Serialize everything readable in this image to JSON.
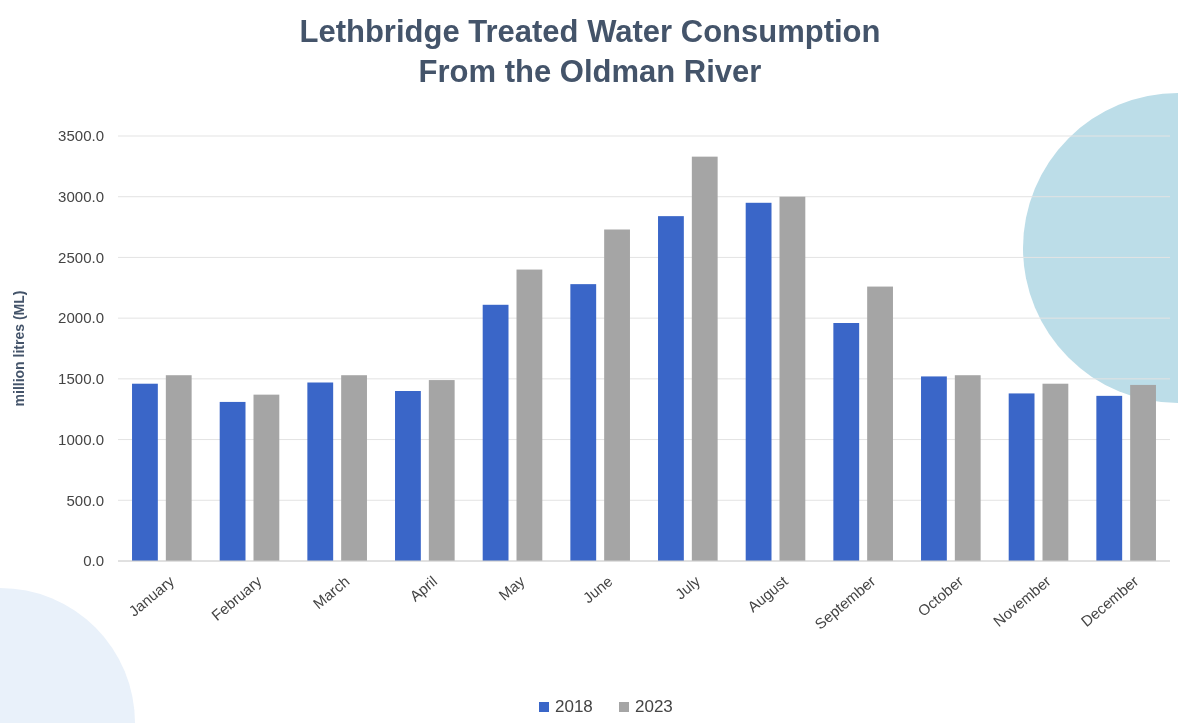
{
  "chart_data": {
    "type": "bar",
    "title": "Lethbridge Treated Water Consumption\nFrom the Oldman River",
    "ylabel": "million litres (ML)",
    "categories": [
      "January",
      "February",
      "March",
      "April",
      "May",
      "June",
      "July",
      "August",
      "September",
      "October",
      "November",
      "December"
    ],
    "series": [
      {
        "name": "2018",
        "color": "#3a66c8",
        "values": [
          1460,
          1310,
          1470,
          1400,
          2110,
          2280,
          2840,
          2950,
          1960,
          1520,
          1380,
          1360
        ]
      },
      {
        "name": "2023",
        "color": "#a5a5a5",
        "values": [
          1530,
          1370,
          1530,
          1490,
          2400,
          2730,
          3330,
          3000,
          2260,
          1530,
          1460,
          1450
        ]
      }
    ],
    "ylim": [
      0,
      3500
    ],
    "yticks": [
      {
        "value": 0,
        "label": "0.0"
      },
      {
        "value": 500,
        "label": "500.0"
      },
      {
        "value": 1000,
        "label": "1000.0"
      },
      {
        "value": 1500,
        "label": "1500.0"
      },
      {
        "value": 2000,
        "label": "2000.0"
      },
      {
        "value": 2500,
        "label": "2500.0"
      },
      {
        "value": 3000,
        "label": "3000.0"
      },
      {
        "value": 3500,
        "label": "3500.0"
      }
    ],
    "grid": "y",
    "legend": "bottom"
  }
}
